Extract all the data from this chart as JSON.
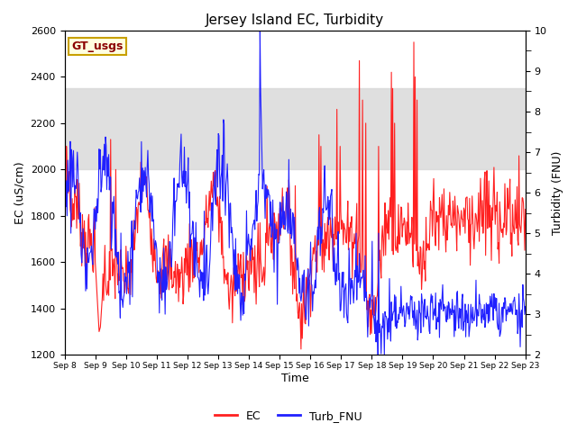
{
  "title": "Jersey Island EC, Turbidity",
  "xlabel": "Time",
  "ylabel_left": "EC (uS/cm)",
  "ylabel_right": "Turbidity (FNU)",
  "ylim_left": [
    1200,
    2600
  ],
  "ylim_right": [
    2.0,
    10.0
  ],
  "shade_ec_lo": 2000,
  "shade_ec_hi": 2350,
  "ec_color": "#ff2020",
  "turb_color": "#2020ff",
  "gt_usgs_label": "GT_usgs",
  "legend_ec": "EC",
  "legend_turb": "Turb_FNU",
  "xtick_labels": [
    "Sep 8",
    "Sep 9",
    "Sep 10",
    "Sep 11",
    "Sep 12",
    "Sep 13",
    "Sep 14",
    "Sep 15",
    "Sep 16",
    "Sep 17",
    "Sep 18",
    "Sep 19",
    "Sep 20",
    "Sep 21",
    "Sep 22",
    "Sep 23"
  ],
  "yticks_left": [
    1200,
    1400,
    1600,
    1800,
    2000,
    2200,
    2400,
    2600
  ],
  "yticks_right": [
    2.0,
    3.0,
    4.0,
    5.0,
    6.0,
    7.0,
    8.0,
    9.0,
    10.0
  ],
  "background_color": "#ffffff",
  "shade_color": "#d8d8d8"
}
